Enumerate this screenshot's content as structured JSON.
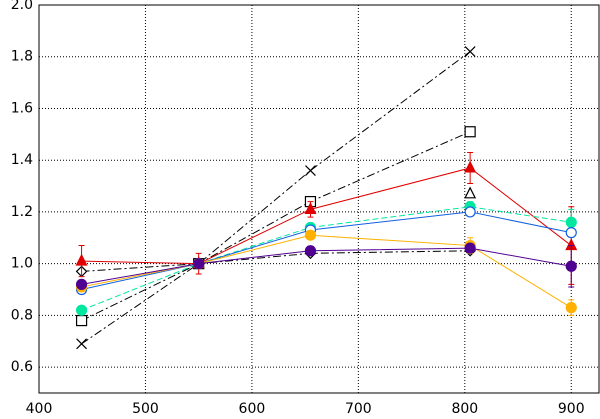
{
  "chart_data": {
    "type": "line",
    "x": [
      440,
      550,
      655,
      805,
      900
    ],
    "xlim": [
      400,
      927
    ],
    "xticks": [
      400,
      500,
      600,
      700,
      800,
      900
    ],
    "ylim": [
      0.5,
      2.0
    ],
    "yticks": [
      0.6,
      0.8,
      {
        "value": 1.0,
        "label": "1.0"
      },
      1.2,
      1.4,
      1.6,
      1.8,
      {
        "value": 2.0,
        "label": "2.0"
      }
    ],
    "grid": true,
    "series": [
      {
        "color": "#000000",
        "marker": "cross",
        "dash": "dashdot",
        "values": [
          0.69,
          1.0,
          1.36,
          1.82,
          null
        ]
      },
      {
        "color": "#000000",
        "marker": "square-open",
        "dash": "dashdot",
        "values": [
          0.78,
          1.0,
          1.24,
          1.51,
          null
        ]
      },
      {
        "color": "#000000",
        "marker": "triangle-open",
        "dash": "dashdot",
        "values": [
          null,
          1.0,
          null,
          1.27,
          null
        ]
      },
      {
        "color": "#000000",
        "marker": "diamond-open",
        "dash": "dashdot",
        "values": [
          0.97,
          1.0,
          1.04,
          1.05,
          null
        ]
      },
      {
        "color": "#e00000",
        "marker": "triangle",
        "dash": "solid",
        "values": [
          1.01,
          1.0,
          1.21,
          1.37,
          1.07
        ],
        "errors": [
          0.06,
          0.04,
          0.03,
          0.06,
          0.15
        ]
      },
      {
        "color": "#00e8a0",
        "marker": "circle",
        "dash": "dashed",
        "values": [
          0.82,
          1.0,
          1.14,
          1.22,
          1.16
        ],
        "errors": [
          0.01,
          0.01,
          0.01,
          0.02,
          0.05
        ]
      },
      {
        "color": "#1060e0",
        "marker": "circle-open",
        "dash": "solid",
        "values": [
          0.9,
          1.0,
          1.13,
          1.2,
          1.12
        ]
      },
      {
        "color": "#ffb000",
        "marker": "circle",
        "dash": "solid",
        "values": [
          0.91,
          1.0,
          1.11,
          1.07,
          0.83
        ],
        "errors": [
          0.01,
          0.01,
          0.01,
          0.03,
          0.03
        ]
      },
      {
        "color": "#500090",
        "marker": "circle",
        "dash": "solid",
        "values": [
          0.92,
          1.0,
          1.05,
          1.06,
          0.99
        ],
        "errors": [
          0.01,
          0.01,
          0.01,
          0.01,
          0.08
        ]
      }
    ]
  }
}
